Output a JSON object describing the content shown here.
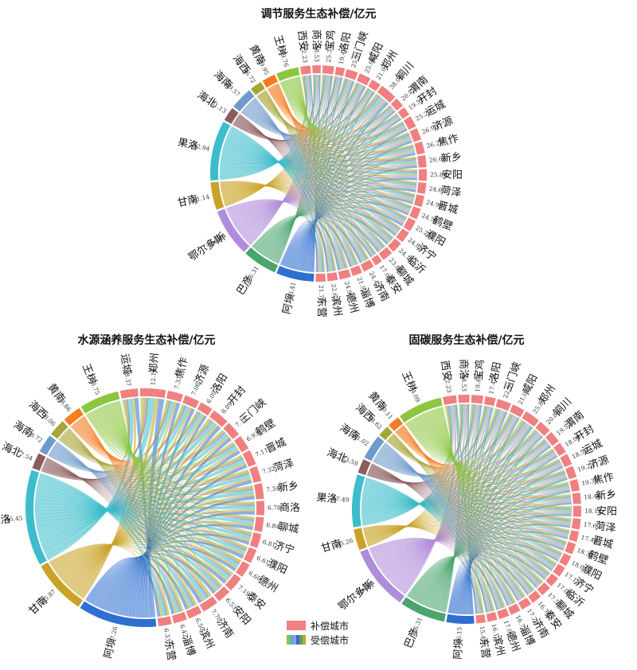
{
  "colors": {
    "payer": "#F08080",
    "receivers": {
      "王树": "#8CC63F",
      "黄南": "#F47D20",
      "海西": "#A7A53B",
      "海南": "#6F9BCB",
      "海北": "#8B5C5C",
      "果洛": "#3DBDCB",
      "甘南": "#C9A227",
      "鄂尔多斯": "#B18CDB",
      "巴彦": "#4BA56F",
      "阿坝": "#2F6FD1"
    },
    "ribbon_palette": [
      "#8CC63F",
      "#3DBDCB",
      "#B18CDB",
      "#2F6FD1",
      "#4BA56F",
      "#C9A227",
      "#F47D20",
      "#6F9BCB",
      "#A7A53B",
      "#8B5C5C"
    ]
  },
  "legend": {
    "payer_label": "补偿城市",
    "receiver_label": "受偿城市"
  },
  "chart_data": [
    {
      "type": "chord",
      "title": "调节服务生态补偿/亿元",
      "receivers": [
        {
          "name": "王树",
          "value": "49.76",
          "raw": 49.76
        },
        {
          "name": "黄南",
          "value": "29.95",
          "raw": 29.95
        },
        {
          "name": "海西",
          "value": "26.72",
          "raw": 26.72
        },
        {
          "name": "海南",
          "value": "49.57",
          "raw": 49.57
        },
        {
          "name": "海北",
          "value": "31.13",
          "raw": 31.13
        },
        {
          "name": "果洛",
          "value": "132.94",
          "raw": 132.94
        },
        {
          "name": "甘南",
          "value": "61.14",
          "raw": 61.14
        },
        {
          "name": "鄂尔多斯",
          "value": "106.64",
          "raw": 106.64
        },
        {
          "name": "巴彦",
          "value": "76.31",
          "raw": 76.31
        },
        {
          "name": "阿坝",
          "value": "83.41",
          "raw": 83.41
        }
      ],
      "payers": [
        {
          "name": "西安",
          "value": "22.23",
          "raw": 22.23
        },
        {
          "name": "商洛",
          "value": "18.53",
          "raw": 18.53
        },
        {
          "name": "宝鸡",
          "value": "25.31",
          "raw": 25.31
        },
        {
          "name": "洛阳",
          "value": "19.46",
          "raw": 19.46
        },
        {
          "name": "三门峡",
          "value": "25.51",
          "raw": 25.51
        },
        {
          "name": "咸阳",
          "value": "25.96",
          "raw": 25.96
        },
        {
          "name": "郑州",
          "value": "21.01",
          "raw": 21.01
        },
        {
          "name": "铜川",
          "value": "38.04",
          "raw": 38.04
        },
        {
          "name": "渭南",
          "value": "20.83",
          "raw": 20.83
        },
        {
          "name": "开封",
          "value": "19.52",
          "raw": 19.52
        },
        {
          "name": "运城",
          "value": "25.27",
          "raw": 25.27
        },
        {
          "name": "济源",
          "value": "26.90",
          "raw": 26.9
        },
        {
          "name": "焦作",
          "value": "26.29",
          "raw": 26.29
        },
        {
          "name": "新乡",
          "value": "26.62",
          "raw": 26.62
        },
        {
          "name": "安阳",
          "value": "25.80",
          "raw": 25.8
        },
        {
          "name": "菏泽",
          "value": "24.66",
          "raw": 24.66
        },
        {
          "name": "晋城",
          "value": "24.98",
          "raw": 24.98
        },
        {
          "name": "鹤壁",
          "value": "24.55",
          "raw": 24.55
        },
        {
          "name": "濮阳",
          "value": "25.26",
          "raw": 25.26
        },
        {
          "name": "济宁",
          "value": "24.85",
          "raw": 24.85
        },
        {
          "name": "临沂",
          "value": "24.15",
          "raw": 24.15
        },
        {
          "name": "聊城",
          "value": "23.85",
          "raw": 23.85
        },
        {
          "name": "泰安",
          "value": "17.05",
          "raw": 17.05
        },
        {
          "name": "济南",
          "value": "24.42",
          "raw": 24.42
        },
        {
          "name": "淄博",
          "value": "21.93",
          "raw": 21.93
        },
        {
          "name": "德州",
          "value": "24.98",
          "raw": 24.98
        },
        {
          "name": "滨州",
          "value": "22.63",
          "raw": 22.63
        },
        {
          "name": "东营",
          "value": "21.76",
          "raw": 21.76
        }
      ]
    },
    {
      "type": "chord",
      "title": "水源涵养服务生态补偿/亿元",
      "receivers": [
        {
          "name": "王树",
          "value": "18.75",
          "raw": 18.75
        },
        {
          "name": "黄南",
          "value": "8.86",
          "raw": 8.86
        },
        {
          "name": "海西",
          "value": "8.06",
          "raw": 8.06
        },
        {
          "name": "海南",
          "value": "8.72",
          "raw": 8.72
        },
        {
          "name": "海北",
          "value": "7.54",
          "raw": 7.54
        },
        {
          "name": "果洛",
          "value": "45.45",
          "raw": 45.45
        },
        {
          "name": "甘南",
          "value": "25.87",
          "raw": 25.87
        },
        {
          "name": "阿坝",
          "value": "37.26",
          "raw": 37.26
        }
      ],
      "payers": [
        {
          "name": "运城",
          "value": "8.37",
          "raw": 8.37
        },
        {
          "name": "郑州",
          "value": "12.16",
          "raw": 12.16
        },
        {
          "name": "焦作",
          "value": "7.33",
          "raw": 7.33
        },
        {
          "name": "济源",
          "value": "7.06",
          "raw": 7.06
        },
        {
          "name": "洛阳",
          "value": "6.09",
          "raw": 6.09
        },
        {
          "name": "开封",
          "value": "8.09",
          "raw": 8.09
        },
        {
          "name": "三门峡",
          "value": "7.12",
          "raw": 7.12
        },
        {
          "name": "鹤壁",
          "value": "6.93",
          "raw": 6.93
        },
        {
          "name": "晋城",
          "value": "7.11",
          "raw": 7.11
        },
        {
          "name": "菏泽",
          "value": "7.32",
          "raw": 7.32
        },
        {
          "name": "新乡",
          "value": "7.34",
          "raw": 7.34
        },
        {
          "name": "商洛",
          "value": "6.78",
          "raw": 6.78
        },
        {
          "name": "聊城",
          "value": "6.84",
          "raw": 6.84
        },
        {
          "name": "济宁",
          "value": "6.81",
          "raw": 6.81
        },
        {
          "name": "濮阳",
          "value": "6.61",
          "raw": 6.61
        },
        {
          "name": "德州",
          "value": "6.60",
          "raw": 6.6
        },
        {
          "name": "泰安",
          "value": "7.19",
          "raw": 7.19
        },
        {
          "name": "安阳",
          "value": "6.53",
          "raw": 6.53
        },
        {
          "name": "济南",
          "value": "7.70",
          "raw": 7.7
        },
        {
          "name": "滨州",
          "value": "6.50",
          "raw": 6.5
        },
        {
          "name": "淄博",
          "value": "6.42",
          "raw": 6.42
        },
        {
          "name": "东营",
          "value": "6.33",
          "raw": 6.33
        }
      ]
    },
    {
      "type": "chord",
      "title": "固碳服务生态补偿/亿元",
      "receivers": [
        {
          "name": "王树",
          "value": "74.09",
          "raw": 74.09
        },
        {
          "name": "黄南",
          "value": "20.11",
          "raw": 20.11
        },
        {
          "name": "海西",
          "value": "18.62",
          "raw": 18.62
        },
        {
          "name": "海南",
          "value": "41.02",
          "raw": 41.02
        },
        {
          "name": "海北",
          "value": "23.59",
          "raw": 23.59
        },
        {
          "name": "果洛",
          "value": "87.49",
          "raw": 87.49
        },
        {
          "name": "甘南",
          "value": "35.26",
          "raw": 35.26
        },
        {
          "name": "鄂尔多斯",
          "value": "106.64",
          "raw": 106.64
        },
        {
          "name": "巴彦",
          "value": "76.31",
          "raw": 76.31
        },
        {
          "name": "阿坝",
          "value": "46.15",
          "raw": 46.15
        }
      ],
      "payers": [
        {
          "name": "西安",
          "value": "22.23",
          "raw": 22.23
        },
        {
          "name": "商洛",
          "value": "18.53",
          "raw": 18.53
        },
        {
          "name": "宝鸡",
          "value": "19.46",
          "raw": 19.46
        },
        {
          "name": "洛阳",
          "value": "17.42",
          "raw": 17.42
        },
        {
          "name": "三门峡",
          "value": "22.94",
          "raw": 22.94
        },
        {
          "name": "咸阳",
          "value": "21.01",
          "raw": 21.01
        },
        {
          "name": "郑州",
          "value": "25.87",
          "raw": 25.87
        },
        {
          "name": "铜川",
          "value": "20.83",
          "raw": 20.83
        },
        {
          "name": "渭南",
          "value": "19.52",
          "raw": 19.52
        },
        {
          "name": "开封",
          "value": "18.08",
          "raw": 18.08
        },
        {
          "name": "运城",
          "value": "18.52",
          "raw": 18.52
        },
        {
          "name": "济源",
          "value": "19.23",
          "raw": 19.23
        },
        {
          "name": "焦作",
          "value": "19.30",
          "raw": 19.3
        },
        {
          "name": "新乡",
          "value": "18.46",
          "raw": 18.46
        },
        {
          "name": "安阳",
          "value": "18.13",
          "raw": 18.13
        },
        {
          "name": "菏泽",
          "value": "17.67",
          "raw": 17.67
        },
        {
          "name": "晋城",
          "value": "17.44",
          "raw": 17.44
        },
        {
          "name": "鹤壁",
          "value": "18.33",
          "raw": 18.33
        },
        {
          "name": "濮阳",
          "value": "18.04",
          "raw": 18.04
        },
        {
          "name": "济宁",
          "value": "17.15",
          "raw": 17.15
        },
        {
          "name": "临沂",
          "value": "17.05",
          "raw": 17.05
        },
        {
          "name": "聊城",
          "value": "17.57",
          "raw": 17.57
        },
        {
          "name": "泰安",
          "value": "16.74",
          "raw": 16.74
        },
        {
          "name": "济南",
          "value": "17.20",
          "raw": 17.2
        },
        {
          "name": "淄博",
          "value": "16.75",
          "raw": 16.75
        },
        {
          "name": "德州",
          "value": "17.03",
          "raw": 17.03
        },
        {
          "name": "滨州",
          "value": "16.17",
          "raw": 16.17
        },
        {
          "name": "东营",
          "value": "15.43",
          "raw": 15.43
        }
      ]
    }
  ]
}
